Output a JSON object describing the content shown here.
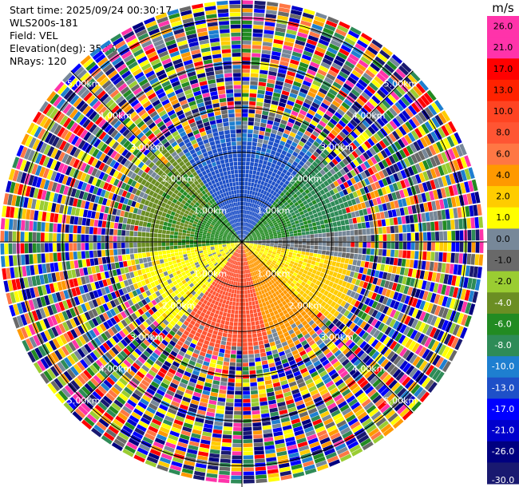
{
  "header": {
    "start_time": "Start time: 2025/09/24 00:30:17",
    "instrument": "WLS200s-181",
    "field": "Field: VEL",
    "elevation": "Elevation(deg): 35.00",
    "nrays": "NRays: 120"
  },
  "chart_data": {
    "type": "heatmap",
    "projection": "polar-ppi",
    "field": "VEL",
    "units": "m/s",
    "elevation_deg": 35.0,
    "n_rays": 120,
    "max_range_km": 5.4,
    "range_rings_km": [
      1,
      2,
      3,
      4,
      5
    ],
    "ring_labels": [
      "1.00km",
      "2.00km",
      "3.00km",
      "4.00km",
      "5.00km"
    ],
    "colorbar": {
      "unit_label": "m/s",
      "tick_labels": [
        "26.0",
        "21.0",
        "17.0",
        "13.0",
        "10.0",
        "8.0",
        "6.0",
        "4.0",
        "2.0",
        "1.0",
        "0.0",
        "-1.0",
        "-2.0",
        "-4.0",
        "-6.0",
        "-8.0",
        "-10.0",
        "-13.0",
        "-17.0",
        "-21.0",
        "-26.0",
        "-30.0"
      ],
      "bins": [
        {
          "lo": 26,
          "hi": 30,
          "color": "#ff33aa"
        },
        {
          "lo": 21,
          "hi": 26,
          "color": "#ff33aa"
        },
        {
          "lo": 17,
          "hi": 21,
          "color": "#ff0000"
        },
        {
          "lo": 13,
          "hi": 17,
          "color": "#ff2200"
        },
        {
          "lo": 10,
          "hi": 13,
          "color": "#ff4422"
        },
        {
          "lo": 8,
          "hi": 10,
          "color": "#ff5533"
        },
        {
          "lo": 6,
          "hi": 8,
          "color": "#ff7744"
        },
        {
          "lo": 4,
          "hi": 6,
          "color": "#ff9900"
        },
        {
          "lo": 2,
          "hi": 4,
          "color": "#ffcc00"
        },
        {
          "lo": 1,
          "hi": 2,
          "color": "#ffff00"
        },
        {
          "lo": 0,
          "hi": 1,
          "color": "#778899"
        },
        {
          "lo": -1,
          "hi": 0,
          "color": "#696969"
        },
        {
          "lo": -2,
          "hi": -1,
          "color": "#9acd32"
        },
        {
          "lo": -4,
          "hi": -2,
          "color": "#6b8e23"
        },
        {
          "lo": -6,
          "hi": -4,
          "color": "#228b22"
        },
        {
          "lo": -8,
          "hi": -6,
          "color": "#2e8b57"
        },
        {
          "lo": -10,
          "hi": -8,
          "color": "#1e7fd0"
        },
        {
          "lo": -13,
          "hi": -10,
          "color": "#1e50c8"
        },
        {
          "lo": -17,
          "hi": -13,
          "color": "#0000ff"
        },
        {
          "lo": -21,
          "hi": -17,
          "color": "#0000cd"
        },
        {
          "lo": -26,
          "hi": -21,
          "color": "#000080"
        },
        {
          "lo": -30,
          "hi": -26,
          "color": "#191970"
        }
      ]
    },
    "wind_pattern": {
      "coherent_range_km": 2.6,
      "bands": [
        {
          "az_from": 328,
          "az_to": 40,
          "inner_vel": -12,
          "outer_vel": -10
        },
        {
          "az_from": 40,
          "az_to": 85,
          "inner_vel": -5,
          "outer_vel": -7
        },
        {
          "az_from": 85,
          "az_to": 100,
          "inner_vel": 0,
          "outer_vel": 0
        },
        {
          "az_from": 100,
          "az_to": 135,
          "inner_vel": 1.5,
          "outer_vel": 3
        },
        {
          "az_from": 135,
          "az_to": 165,
          "inner_vel": 4.5,
          "outer_vel": 5
        },
        {
          "az_from": 165,
          "az_to": 215,
          "inner_vel": 8.5,
          "outer_vel": 9
        },
        {
          "az_from": 215,
          "az_to": 265,
          "inner_vel": 1.5,
          "outer_vel": 1.5
        },
        {
          "az_from": 265,
          "az_to": 328,
          "inner_vel": -5,
          "outer_vel": -3
        }
      ]
    }
  }
}
